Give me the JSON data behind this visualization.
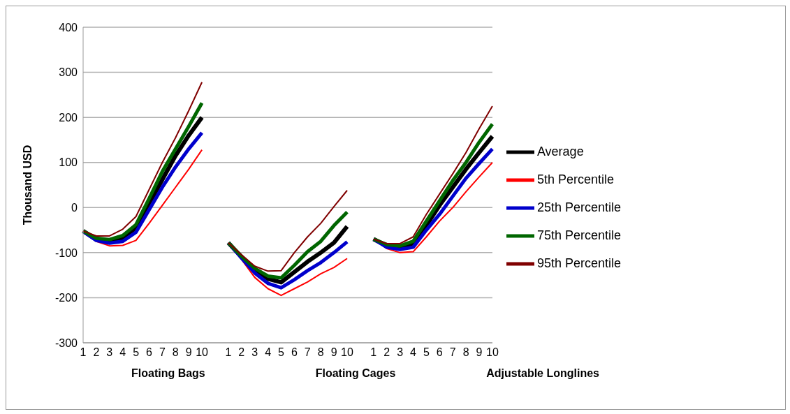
{
  "chart_data": {
    "type": "line",
    "ylabel": "Thousand USD",
    "categories": [
      "1",
      "2",
      "3",
      "4",
      "5",
      "6",
      "7",
      "8",
      "9",
      "10",
      null,
      "1",
      "2",
      "3",
      "4",
      "5",
      "6",
      "7",
      "8",
      "9",
      "10",
      null,
      "1",
      "2",
      "3",
      "4",
      "5",
      "6",
      "7",
      "8",
      "9",
      "10"
    ],
    "annotations": [
      "Floating Bags",
      "Floating Cages",
      "Adjustable Longlines"
    ],
    "series": [
      {
        "name": "Average",
        "color": "#000000",
        "values": [
          -52,
          -71,
          -74,
          -68,
          -45,
          8,
          62,
          115,
          160,
          200,
          null,
          -78,
          -110,
          -140,
          -158,
          -166,
          -143,
          -120,
          -100,
          -78,
          -42,
          null,
          -70,
          -85,
          -88,
          -83,
          -40,
          5,
          45,
          85,
          122,
          158
        ]
      },
      {
        "name": "5th Percentile",
        "color": "#ff0000",
        "values": [
          -52,
          -75,
          -85,
          -84,
          -73,
          -35,
          5,
          45,
          85,
          128,
          null,
          -78,
          -115,
          -155,
          -180,
          -195,
          -180,
          -165,
          -147,
          -133,
          -113,
          null,
          -70,
          -91,
          -100,
          -98,
          -65,
          -30,
          0,
          35,
          68,
          100
        ]
      },
      {
        "name": "25th Percentile",
        "color": "#0000cc",
        "values": [
          -53,
          -73,
          -79,
          -75,
          -55,
          -5,
          45,
          90,
          130,
          166,
          null,
          -78,
          -112,
          -145,
          -168,
          -178,
          -160,
          -140,
          -122,
          -100,
          -76,
          null,
          -70,
          -88,
          -93,
          -88,
          -50,
          -15,
          25,
          65,
          98,
          130
        ]
      },
      {
        "name": "75th Percentile",
        "color": "#006600",
        "values": [
          -52,
          -68,
          -71,
          -62,
          -38,
          20,
          80,
          130,
          180,
          232,
          null,
          -78,
          -108,
          -135,
          -152,
          -156,
          -128,
          -98,
          -75,
          -40,
          -10,
          null,
          -70,
          -82,
          -85,
          -75,
          -30,
          15,
          60,
          100,
          145,
          185
        ]
      },
      {
        "name": "95th Percentile",
        "color": "#800000",
        "values": [
          -52,
          -63,
          -63,
          -48,
          -20,
          40,
          100,
          155,
          215,
          278,
          null,
          -78,
          -105,
          -130,
          -141,
          -140,
          -100,
          -65,
          -35,
          2,
          38,
          null,
          -70,
          -80,
          -80,
          -65,
          -15,
          30,
          75,
          122,
          175,
          225
        ]
      }
    ],
    "ylim": [
      -300,
      400
    ],
    "yticks": [
      -300,
      -200,
      -100,
      0,
      100,
      200,
      300,
      400
    ],
    "grid": "y",
    "legend": "right",
    "marker": "none",
    "line_style": "solid"
  }
}
